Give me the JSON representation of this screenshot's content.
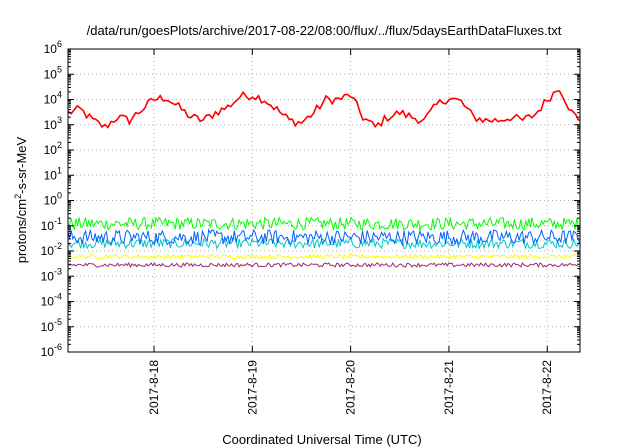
{
  "chart_data": {
    "type": "line",
    "title": "/data/run/goesPlots/archive/2017-08-22/08:00/flux/../flux/5daysEarthDataFluxes.txt",
    "xlabel": "Coordinated Universal Time (UTC)",
    "ylabel": "protons/cm²-s-sr-MeV",
    "ylabel_parts": {
      "prefix": "protons/cm",
      "sup": "2",
      "suffix": "-s-sr-MeV"
    },
    "yscale": "log",
    "ylim_exponents": [
      -6,
      6
    ],
    "y_tick_labels": [
      {
        "base": "10",
        "exp": "-6"
      },
      {
        "base": "10",
        "exp": "-5"
      },
      {
        "base": "10",
        "exp": "-4"
      },
      {
        "base": "10",
        "exp": "-3"
      },
      {
        "base": "10",
        "exp": "-2"
      },
      {
        "base": "10",
        "exp": "-1"
      },
      {
        "base": "10",
        "exp": "0"
      },
      {
        "base": "10",
        "exp": "1"
      },
      {
        "base": "10",
        "exp": "2"
      },
      {
        "base": "10",
        "exp": "3"
      },
      {
        "base": "10",
        "exp": "4"
      },
      {
        "base": "10",
        "exp": "5"
      },
      {
        "base": "10",
        "exp": "6"
      }
    ],
    "x_range_days": [
      "2017-08-17 03:00",
      "2017-08-22 08:00"
    ],
    "x_tick_labels": [
      "2017-8-18",
      "2017-8-19",
      "2017-8-20",
      "2017-8-21",
      "2017-8-22"
    ],
    "grid": true,
    "series": [
      {
        "color": "#ff0000",
        "x": [
          "2017-08-17 03:00",
          "2017-08-17 06:00",
          "2017-08-17 09:00",
          "2017-08-17 12:00",
          "2017-08-17 15:00",
          "2017-08-17 18:00",
          "2017-08-17 21:00",
          "2017-08-18 00:00",
          "2017-08-18 03:00",
          "2017-08-18 06:00",
          "2017-08-18 09:00",
          "2017-08-18 12:00",
          "2017-08-18 15:00",
          "2017-08-18 18:00",
          "2017-08-18 21:00",
          "2017-08-19 00:00",
          "2017-08-19 03:00",
          "2017-08-19 06:00",
          "2017-08-19 09:00",
          "2017-08-19 12:00",
          "2017-08-19 15:00",
          "2017-08-19 18:00",
          "2017-08-19 21:00",
          "2017-08-20 00:00",
          "2017-08-20 03:00",
          "2017-08-20 06:00",
          "2017-08-20 09:00",
          "2017-08-20 12:00",
          "2017-08-20 15:00",
          "2017-08-20 18:00",
          "2017-08-20 21:00",
          "2017-08-21 00:00",
          "2017-08-21 03:00",
          "2017-08-21 06:00",
          "2017-08-21 09:00",
          "2017-08-21 12:00",
          "2017-08-21 15:00",
          "2017-08-21 18:00",
          "2017-08-21 21:00",
          "2017-08-22 00:00",
          "2017-08-22 03:00",
          "2017-08-22 06:00",
          "2017-08-22 08:00"
        ],
        "values": [
          3000,
          4000,
          1500,
          800,
          2000,
          1500,
          4000,
          10000,
          12000,
          5000,
          2000,
          1500,
          3000,
          5000,
          13000,
          15000,
          10000,
          4000,
          1500,
          1200,
          3000,
          10000,
          10000,
          15000,
          2000,
          800,
          2000,
          3000,
          2000,
          1500,
          6000,
          12000,
          8000,
          2000,
          1500,
          1500,
          2000,
          1500,
          2500,
          10000,
          30000,
          3000,
          1500
        ]
      },
      {
        "color": "#00ff00",
        "y_center": 0.12,
        "y_spread": 0.25
      },
      {
        "color": "#00c8c8",
        "y_center": 0.02,
        "y_spread": 0.2
      },
      {
        "color": "#0064ff",
        "y_center": 0.035,
        "y_spread": 0.3
      },
      {
        "color": "#ffff00",
        "y_center": 0.006,
        "y_spread": 0.08
      },
      {
        "color": "#9b2a6e",
        "y_center": 0.0028,
        "y_spread": 0.08
      }
    ]
  }
}
